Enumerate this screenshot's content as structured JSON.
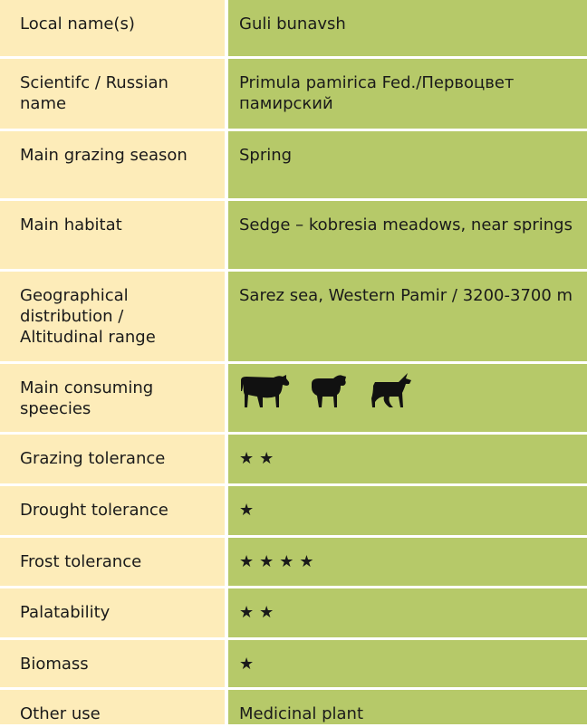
{
  "table": {
    "rows": [
      {
        "label": "Local name(s)",
        "value": "Guli bunavsh"
      },
      {
        "label": "Scientifc / Russian name",
        "value": "Primula pamirica Fed./Первоцвет памирский"
      },
      {
        "label": "Main grazing season",
        "value": "Spring"
      },
      {
        "label": "Main habitat",
        "value": "Sedge – kobresia meadows, near springs"
      },
      {
        "label": "Geographical distribution / Altitudinal range",
        "value": "Sarez sea, Western Pamir / 3200-3700 m"
      },
      {
        "label": "Main consuming speecies"
      },
      {
        "label": "Grazing tolerance",
        "value": "★★"
      },
      {
        "label": "Drought tolerance",
        "value": "★"
      },
      {
        "label": "Frost tolerance",
        "value": "★★★★"
      },
      {
        "label": "Palatability",
        "value": "★★"
      },
      {
        "label": "Biomass",
        "value": "★"
      },
      {
        "label": "Other use",
        "value": "Medicinal plant"
      }
    ]
  }
}
